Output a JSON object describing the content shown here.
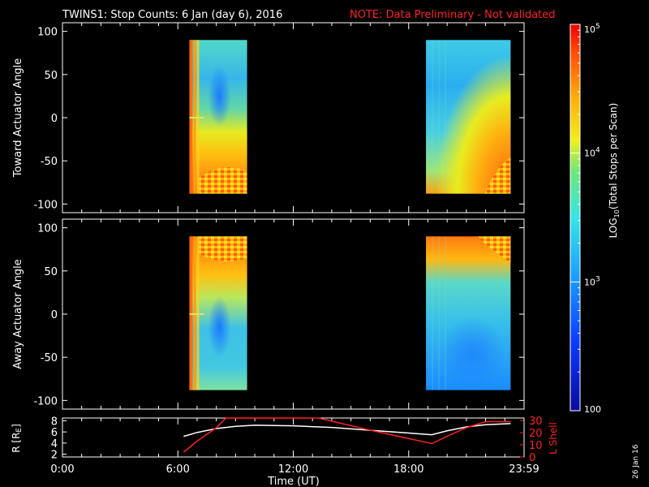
{
  "title": {
    "main": "TWINS1: Stop Counts:  6 Jan (day   6), 2016",
    "note": "NOTE: Data Preliminary - Not validated"
  },
  "corner_label": "26 Jan 16",
  "colors": {
    "background": "#000000",
    "axes": "#ffffff",
    "note": "#ff2020",
    "r_line": "#ffffff",
    "lshell_line": "#ff2020"
  },
  "chart_data": [
    {
      "type": "heatmap",
      "panel": "toward",
      "ylabel": "Toward Actuator Angle",
      "ylim": [
        -110,
        110
      ],
      "yticks": [
        100,
        50,
        0,
        -50,
        -100
      ],
      "xlim_hours": [
        0,
        24
      ],
      "data_blocks_hours": [
        [
          6.6,
          9.6
        ],
        [
          18.9,
          23.3
        ]
      ],
      "angle_range": [
        -88,
        90
      ],
      "log10_counts_range": [
        2,
        5
      ]
    },
    {
      "type": "heatmap",
      "panel": "away",
      "ylabel": "Away Actuator Angle",
      "ylim": [
        -110,
        110
      ],
      "yticks": [
        100,
        50,
        0,
        -50,
        -100
      ],
      "xlim_hours": [
        0,
        24
      ],
      "data_blocks_hours": [
        [
          6.6,
          9.6
        ],
        [
          18.9,
          23.3
        ]
      ],
      "angle_range": [
        -88,
        90
      ],
      "log10_counts_range": [
        2,
        5
      ]
    },
    {
      "type": "line",
      "panel": "orbit",
      "ylabel_left": "R [R",
      "ylabel_left_sub": "E",
      "ylabel_left_close": "]",
      "ylabel_right": "L Shell",
      "yleft_ticks": [
        8,
        6,
        4,
        2
      ],
      "yright_ticks": [
        30,
        20,
        10,
        0
      ],
      "yleft_lim": [
        1.5,
        8.5
      ],
      "yright_lim": [
        0,
        32
      ],
      "xlabel": "Time (UT)",
      "xticks": [
        "0:00",
        "6:00",
        "12:00",
        "18:00",
        "23:59"
      ],
      "xtick_hours": [
        0,
        6,
        12,
        18,
        24
      ],
      "series": [
        {
          "axis": "left",
          "x": [
            6.3,
            7.0,
            8.0,
            9.0,
            10.0,
            12.0,
            14.0,
            16.0,
            18.0,
            19.2,
            20.0,
            21.0,
            22.0,
            23.3
          ],
          "values": [
            5.2,
            5.9,
            6.6,
            7.0,
            7.2,
            7.1,
            6.8,
            6.3,
            5.8,
            5.5,
            6.2,
            6.9,
            7.3,
            7.5
          ]
        },
        {
          "axis": "right",
          "x": [
            6.3,
            7.0,
            8.0,
            8.5,
            13.3,
            16.0,
            19.2,
            20.0,
            21.0,
            22.0,
            23.3
          ],
          "values": [
            4,
            13,
            24,
            33,
            33,
            22,
            11,
            17,
            24,
            29,
            29
          ]
        }
      ]
    }
  ],
  "colorbar": {
    "label_main": "LOG",
    "label_sub": "10",
    "label_rest": "(Total Stops per Scan)",
    "ticks": [
      {
        "base": "10",
        "exp": "5",
        "value": 5
      },
      {
        "base": "10",
        "exp": "4",
        "value": 4
      },
      {
        "base": "10",
        "exp": "3",
        "value": 3
      },
      {
        "base": "100",
        "exp": "",
        "value": 2
      }
    ],
    "range": [
      2,
      5
    ]
  }
}
